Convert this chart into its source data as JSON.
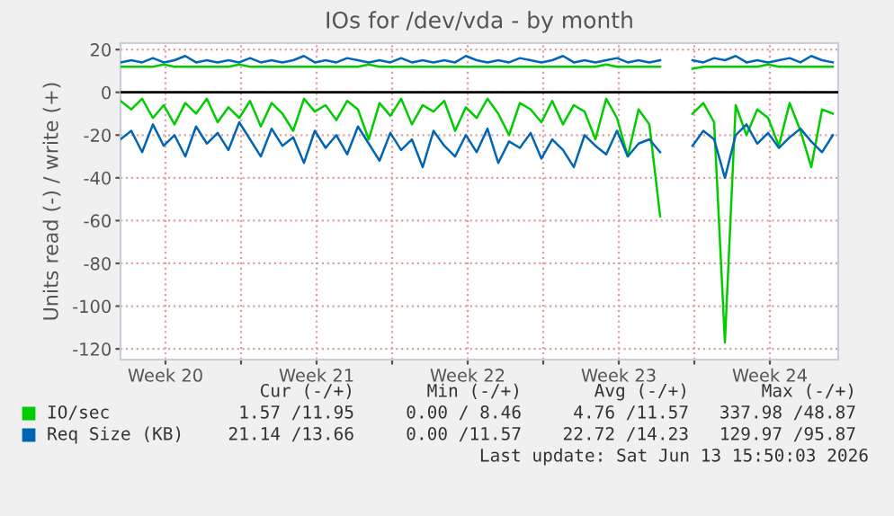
{
  "chart_data": {
    "type": "line",
    "title": "IOs for /dev/vda - by month",
    "ylabel": "Units read (-) / write (+)",
    "xlim": [
      "2026-05-12T10:00",
      "2026-06-14T16:00"
    ],
    "ylim": [
      -125,
      23
    ],
    "xticks": [
      {
        "value": "2026-05-14T12:00",
        "label": "Week 20"
      },
      {
        "value": "2026-05-18T00:00",
        "label": null
      },
      {
        "value": "2026-05-21T12:00",
        "label": "Week 21"
      },
      {
        "value": "2026-05-25T00:00",
        "label": null
      },
      {
        "value": "2026-05-28T12:00",
        "label": "Week 22"
      },
      {
        "value": "2026-06-01T00:00",
        "label": null
      },
      {
        "value": "2026-06-04T12:00",
        "label": "Week 23"
      },
      {
        "value": "2026-06-08T00:00",
        "label": null
      },
      {
        "value": "2026-06-11T12:00",
        "label": "Week 24"
      }
    ],
    "yticks": [
      -120,
      -100,
      -80,
      -60,
      -40,
      -20,
      0,
      20
    ],
    "grid": true,
    "legend": "bottom",
    "line_style": "solid",
    "marker": "none",
    "ref_lines": [
      {
        "axis": "y",
        "value": 0,
        "color": "#000000"
      }
    ],
    "x": [
      "2026-05-12T10:00",
      "2026-05-12T22:00",
      "2026-05-13T10:00",
      "2026-05-13T22:00",
      "2026-05-14T10:00",
      "2026-05-14T22:00",
      "2026-05-15T10:00",
      "2026-05-15T22:00",
      "2026-05-16T10:00",
      "2026-05-16T22:00",
      "2026-05-17T10:00",
      "2026-05-17T22:00",
      "2026-05-18T10:00",
      "2026-05-18T22:00",
      "2026-05-19T10:00",
      "2026-05-19T22:00",
      "2026-05-20T10:00",
      "2026-05-20T22:00",
      "2026-05-21T10:00",
      "2026-05-21T22:00",
      "2026-05-22T10:00",
      "2026-05-22T22:00",
      "2026-05-23T10:00",
      "2026-05-23T22:00",
      "2026-05-24T10:00",
      "2026-05-24T22:00",
      "2026-05-25T10:00",
      "2026-05-25T22:00",
      "2026-05-26T10:00",
      "2026-05-26T22:00",
      "2026-05-27T10:00",
      "2026-05-27T22:00",
      "2026-05-28T10:00",
      "2026-05-28T22:00",
      "2026-05-29T10:00",
      "2026-05-29T22:00",
      "2026-05-30T10:00",
      "2026-05-30T22:00",
      "2026-05-31T10:00",
      "2026-05-31T22:00",
      "2026-06-01T10:00",
      "2026-06-01T22:00",
      "2026-06-02T10:00",
      "2026-06-02T22:00",
      "2026-06-03T10:00",
      "2026-06-03T22:00",
      "2026-06-04T10:00",
      "2026-06-04T22:00",
      "2026-06-05T10:00",
      "2026-06-05T22:00",
      "2026-06-06T10:00",
      "2026-06-06T22:00",
      "2026-06-07T10:00",
      "2026-06-07T22:00",
      "2026-06-08T10:00",
      "2026-06-08T22:00",
      "2026-06-09T10:00",
      "2026-06-09T22:00",
      "2026-06-10T10:00",
      "2026-06-10T22:00",
      "2026-06-11T10:00",
      "2026-06-11T22:00",
      "2026-06-12T10:00",
      "2026-06-12T22:00",
      "2026-06-13T10:00",
      "2026-06-13T22:00",
      "2026-06-14T10:00"
    ],
    "series": [
      {
        "color": "#00cc00",
        "values": [
          -4,
          -8,
          -3,
          -12,
          -6,
          -15,
          -5,
          -10,
          -3,
          -14,
          -7,
          -12,
          -4,
          -16,
          -5,
          -10,
          -18,
          -3,
          -9,
          -6,
          -13,
          -4,
          -8,
          -22,
          -5,
          -11,
          -3,
          -15,
          -6,
          -9,
          -4,
          -18,
          -7,
          -12,
          -3,
          -10,
          -20,
          -5,
          -8,
          -14,
          -4,
          -15,
          -6,
          -9,
          -22,
          -3,
          -12,
          -30,
          -8,
          -15,
          -58,
          null,
          null,
          -10,
          -5,
          -14,
          -117,
          -6,
          -20,
          -8,
          -12,
          -25,
          -5,
          -18,
          -35,
          -8,
          -10
        ]
      },
      {
        "name": "IO/sec",
        "color": "#00cc00",
        "values": [
          12,
          12,
          12,
          12,
          13,
          12,
          12,
          12,
          12,
          12,
          12,
          13,
          12,
          12,
          12,
          12,
          12,
          12,
          12,
          12,
          12,
          12,
          12,
          13,
          12,
          12,
          12,
          12,
          12,
          12,
          12,
          12,
          12,
          12,
          12,
          12,
          12,
          12,
          12,
          12,
          12,
          12,
          12,
          12,
          12,
          13,
          12,
          12,
          12,
          12,
          12,
          null,
          null,
          11,
          12,
          12,
          12,
          12,
          12,
          12,
          13,
          12,
          12,
          12,
          12,
          12,
          12
        ]
      },
      {
        "color": "#0066b3",
        "values": [
          -22,
          -18,
          -28,
          -15,
          -25,
          -20,
          -30,
          -16,
          -24,
          -19,
          -27,
          -14,
          -22,
          -30,
          -17,
          -25,
          -21,
          -33,
          -18,
          -26,
          -20,
          -29,
          -16,
          -24,
          -32,
          -19,
          -27,
          -22,
          -35,
          -18,
          -25,
          -30,
          -20,
          -28,
          -17,
          -33,
          -23,
          -26,
          -19,
          -31,
          -22,
          -27,
          -35,
          -20,
          -25,
          -29,
          -18,
          -30,
          -24,
          -22,
          -28,
          null,
          null,
          -25,
          -18,
          -22,
          -40,
          -20,
          -15,
          -24,
          -19,
          -26,
          -21,
          -17,
          -23,
          -28,
          -20
        ]
      },
      {
        "name": "Req Size (KB)",
        "color": "#0066b3",
        "values": [
          14,
          15,
          14,
          16,
          14,
          15,
          17,
          14,
          15,
          14,
          15,
          14,
          16,
          14,
          15,
          14,
          15,
          17,
          14,
          15,
          14,
          16,
          15,
          14,
          15,
          14,
          16,
          14,
          15,
          14,
          15,
          14,
          17,
          15,
          14,
          15,
          14,
          16,
          15,
          14,
          15,
          17,
          14,
          15,
          14,
          15,
          16,
          14,
          15,
          14,
          15,
          null,
          null,
          15,
          14,
          16,
          15,
          17,
          14,
          15,
          14,
          15,
          16,
          14,
          17,
          15,
          14
        ]
      }
    ],
    "annotations": [
      "Cur (-/+)",
      "Min (-/+)",
      "Avg (-/+)",
      "Max (-/+)",
      "1.57 /11.95",
      "0.00 / 8.46",
      "4.76 /11.57",
      "337.98 /48.87",
      "21.14 /13.66",
      "0.00 /11.57",
      "22.72 /14.23",
      "129.97 /95.87",
      "Last update: Sat Jun 13 15:50:03 2026"
    ]
  }
}
